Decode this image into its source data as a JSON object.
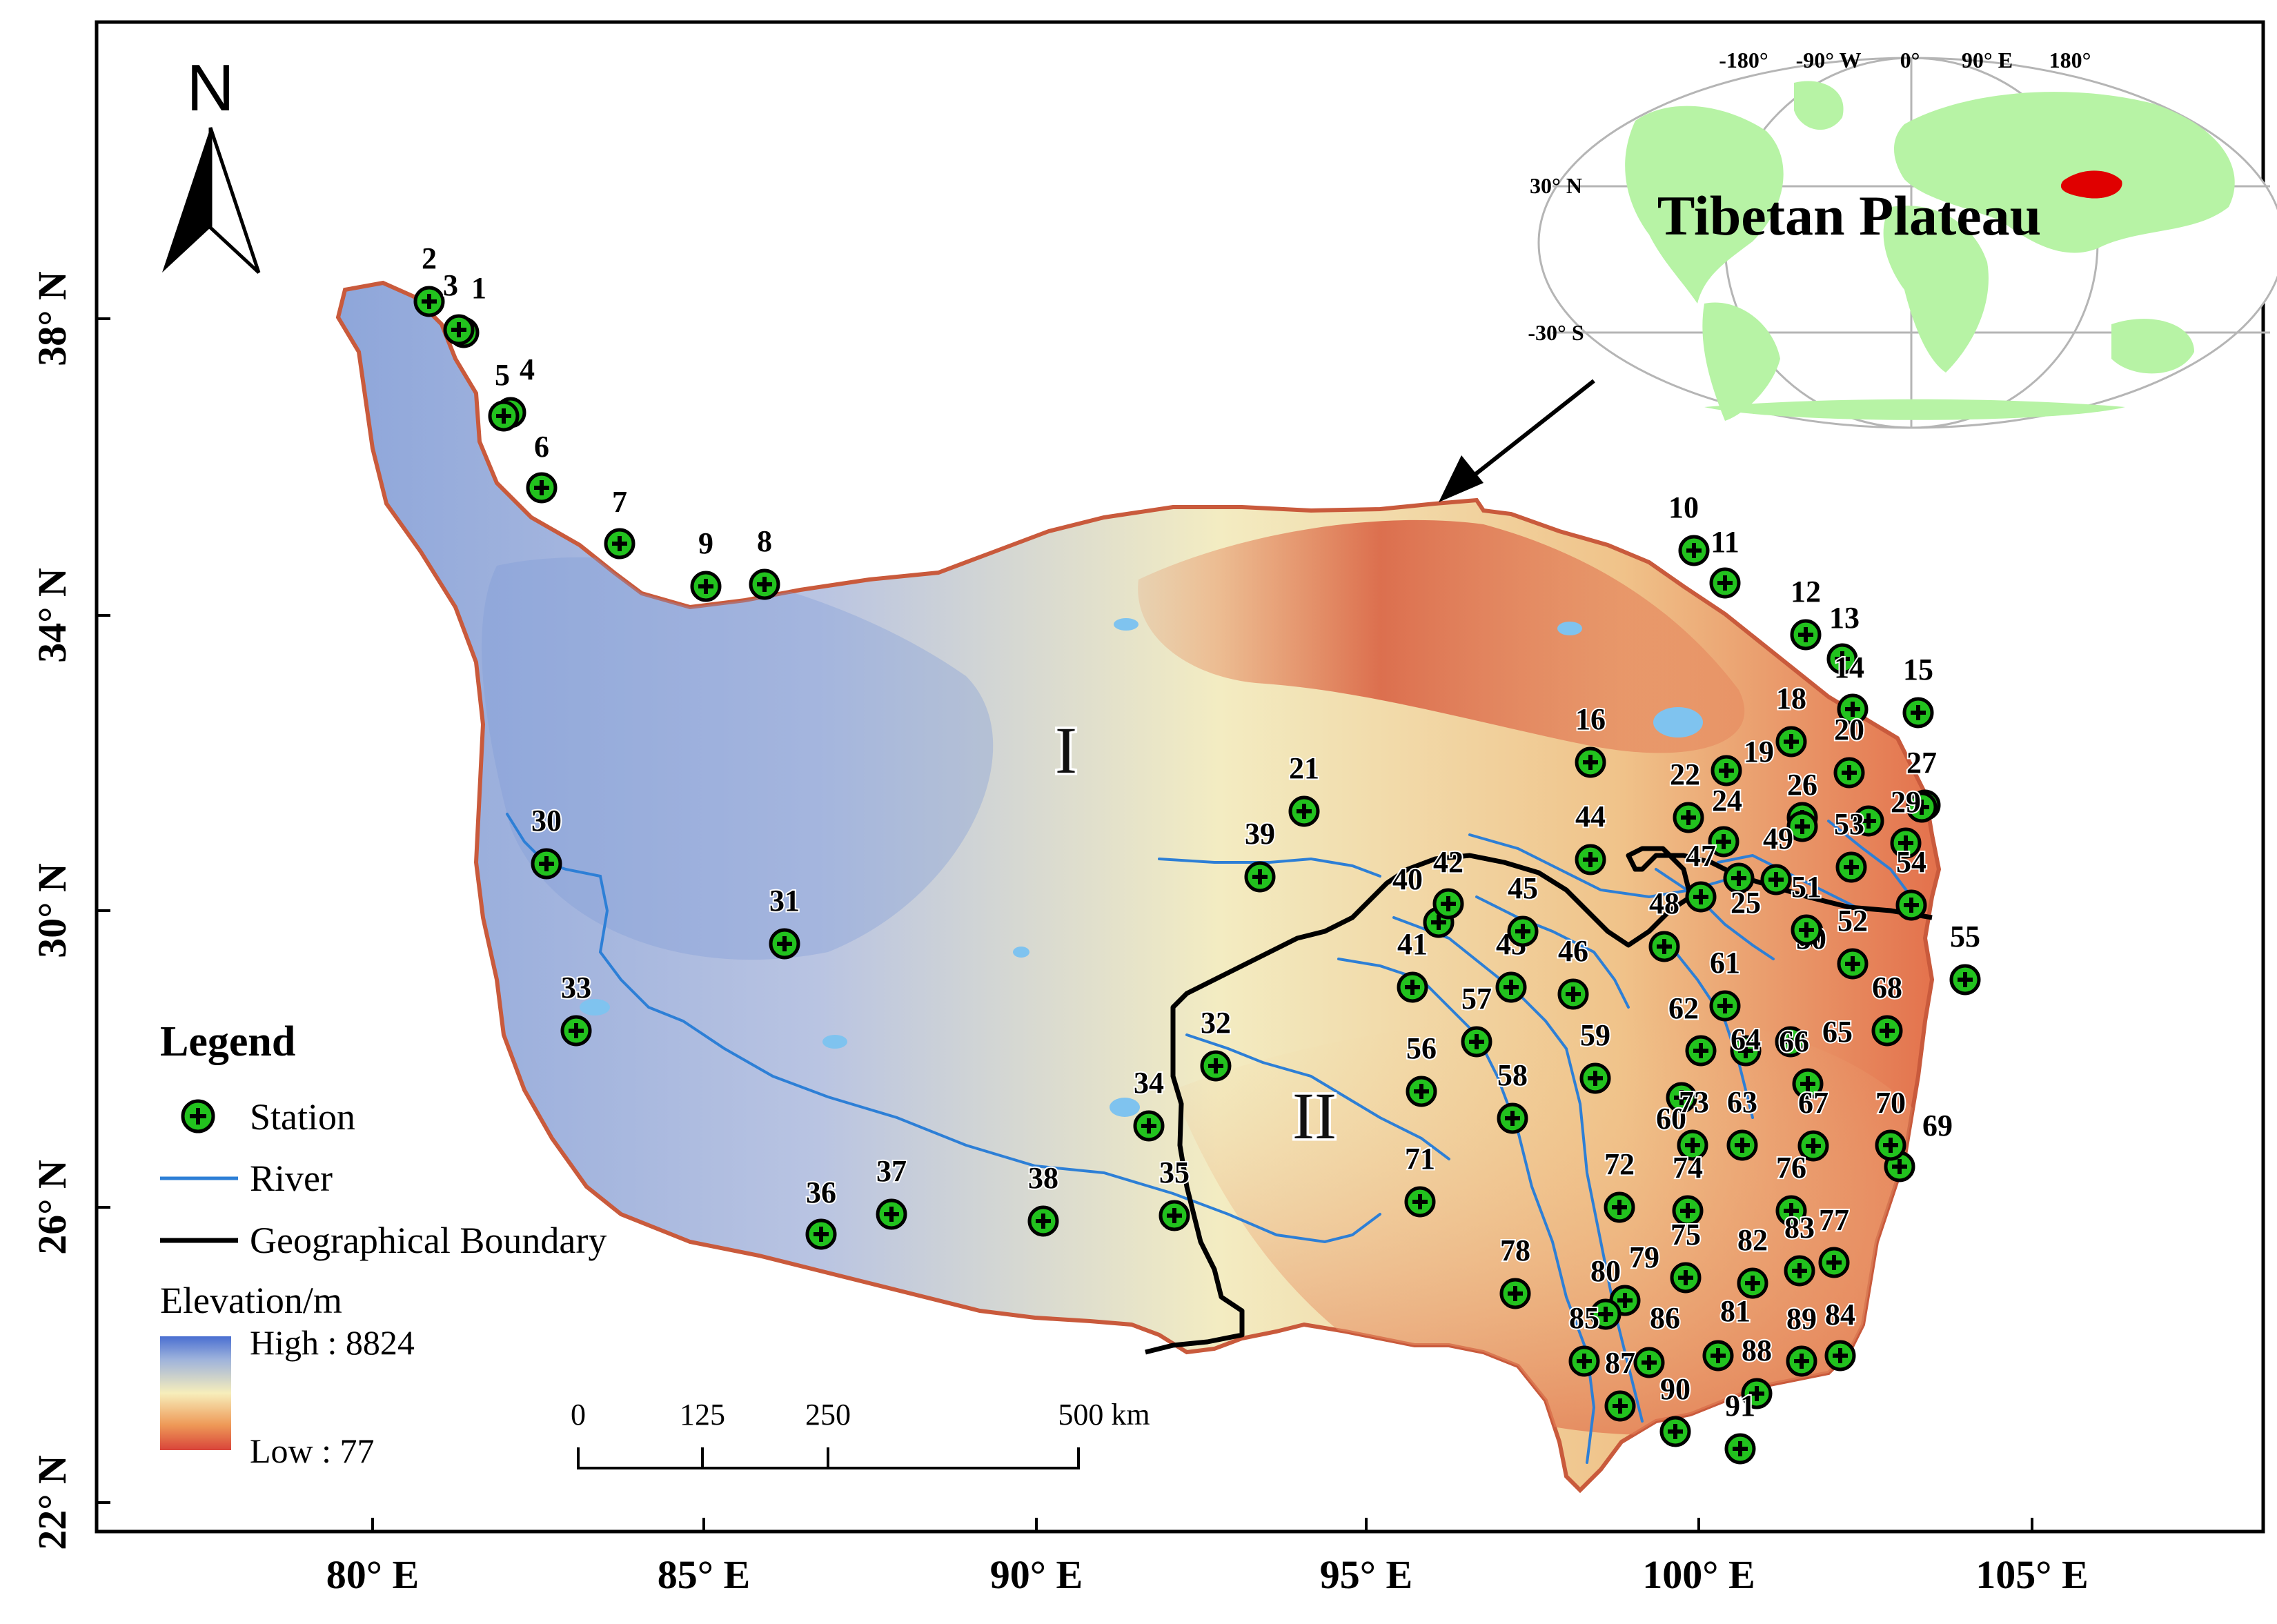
{
  "north_arrow": {
    "label": "N",
    "icon": "north-arrow-icon"
  },
  "axes": {
    "lat_labels": [
      "38° N",
      "34° N",
      "30° N",
      "26° N",
      "22° N"
    ],
    "lon_labels": [
      "80° E",
      "85° E",
      "90° E",
      "95° E",
      "100° E",
      "105° E"
    ]
  },
  "zones": {
    "zone_1": "I",
    "zone_2": "II"
  },
  "legend": {
    "title": "Legend",
    "station": "Station",
    "river": "River",
    "boundary": "Geographical Boundary",
    "elevation_title": "Elevation/m",
    "high": "High : 8824",
    "low": "Low : 77"
  },
  "scale_bar": {
    "ticks": [
      "0",
      "125",
      "250",
      "500 km"
    ]
  },
  "inset": {
    "title": "Tibetan Plateau",
    "lon_labels": [
      "-180°",
      "-90° W",
      "0°",
      "90° E",
      "180°"
    ],
    "lat_labels": [
      "30° N",
      "-30° S"
    ]
  },
  "colors": {
    "station_fill": "#22c21e",
    "river": "#2d7fd6",
    "boundary": "#000000",
    "elev_high": "#4a6fd1",
    "elev_mid": "#f7eebb",
    "elev_low": "#d9443a",
    "land_inset": "#b7f3a5",
    "plateau_inset": "#e00000"
  },
  "stations": [
    {
      "id": "1",
      "label": "1"
    },
    {
      "id": "2",
      "label": "2"
    },
    {
      "id": "3",
      "label": "3"
    },
    {
      "id": "4",
      "label": "4"
    },
    {
      "id": "5",
      "label": "5"
    },
    {
      "id": "6",
      "label": "6"
    },
    {
      "id": "7",
      "label": "7"
    },
    {
      "id": "8",
      "label": "8"
    },
    {
      "id": "9",
      "label": "9"
    },
    {
      "id": "10",
      "label": "10"
    },
    {
      "id": "11",
      "label": "11"
    },
    {
      "id": "12",
      "label": "12"
    },
    {
      "id": "13",
      "label": "13"
    },
    {
      "id": "14",
      "label": "14"
    },
    {
      "id": "15",
      "label": "15"
    },
    {
      "id": "16",
      "label": "16"
    },
    {
      "id": "17",
      "label": ""
    },
    {
      "id": "18",
      "label": "18"
    },
    {
      "id": "19",
      "label": "19"
    },
    {
      "id": "20",
      "label": "20"
    },
    {
      "id": "21",
      "label": "21"
    },
    {
      "id": "22",
      "label": "22"
    },
    {
      "id": "23",
      "label": ""
    },
    {
      "id": "24",
      "label": "24"
    },
    {
      "id": "25",
      "label": "25"
    },
    {
      "id": "26",
      "label": "26"
    },
    {
      "id": "27",
      "label": "27"
    },
    {
      "id": "28",
      "label": ""
    },
    {
      "id": "29",
      "label": "29"
    },
    {
      "id": "30",
      "label": "30"
    },
    {
      "id": "31",
      "label": "31"
    },
    {
      "id": "32",
      "label": "32"
    },
    {
      "id": "33",
      "label": "33"
    },
    {
      "id": "34",
      "label": "34"
    },
    {
      "id": "35",
      "label": "35"
    },
    {
      "id": "36",
      "label": "36"
    },
    {
      "id": "37",
      "label": "37"
    },
    {
      "id": "38",
      "label": "38"
    },
    {
      "id": "39",
      "label": "39"
    },
    {
      "id": "40",
      "label": "40"
    },
    {
      "id": "41",
      "label": "41"
    },
    {
      "id": "42",
      "label": "42"
    },
    {
      "id": "43",
      "label": "43"
    },
    {
      "id": "44",
      "label": "44"
    },
    {
      "id": "45",
      "label": "45"
    },
    {
      "id": "46",
      "label": "46"
    },
    {
      "id": "47",
      "label": "47"
    },
    {
      "id": "48",
      "label": "48"
    },
    {
      "id": "49",
      "label": "49"
    },
    {
      "id": "50",
      "label": "50"
    },
    {
      "id": "51",
      "label": "51"
    },
    {
      "id": "52",
      "label": "52"
    },
    {
      "id": "53",
      "label": "53"
    },
    {
      "id": "54",
      "label": "54"
    },
    {
      "id": "55",
      "label": "55"
    },
    {
      "id": "56",
      "label": "56"
    },
    {
      "id": "57",
      "label": "57"
    },
    {
      "id": "58",
      "label": "58"
    },
    {
      "id": "59",
      "label": "59"
    },
    {
      "id": "60",
      "label": "60"
    },
    {
      "id": "61",
      "label": "61"
    },
    {
      "id": "62",
      "label": "62"
    },
    {
      "id": "63",
      "label": "63"
    },
    {
      "id": "64",
      "label": "64"
    },
    {
      "id": "65",
      "label": "65"
    },
    {
      "id": "66",
      "label": "66"
    },
    {
      "id": "67",
      "label": "67"
    },
    {
      "id": "68",
      "label": "68"
    },
    {
      "id": "69",
      "label": "69"
    },
    {
      "id": "70",
      "label": "70"
    },
    {
      "id": "71",
      "label": "71"
    },
    {
      "id": "72",
      "label": "72"
    },
    {
      "id": "73",
      "label": "73"
    },
    {
      "id": "74",
      "label": "74"
    },
    {
      "id": "75",
      "label": "75"
    },
    {
      "id": "76",
      "label": "76"
    },
    {
      "id": "77",
      "label": "77"
    },
    {
      "id": "78",
      "label": "78"
    },
    {
      "id": "79",
      "label": "79"
    },
    {
      "id": "80",
      "label": "80"
    },
    {
      "id": "81",
      "label": "81"
    },
    {
      "id": "82",
      "label": "82"
    },
    {
      "id": "83",
      "label": "83"
    },
    {
      "id": "84",
      "label": "84"
    },
    {
      "id": "85",
      "label": "85"
    },
    {
      "id": "86",
      "label": "86"
    },
    {
      "id": "87",
      "label": "87"
    },
    {
      "id": "88",
      "label": "88"
    },
    {
      "id": "89",
      "label": "89"
    },
    {
      "id": "90",
      "label": "90"
    },
    {
      "id": "91",
      "label": "91"
    }
  ]
}
